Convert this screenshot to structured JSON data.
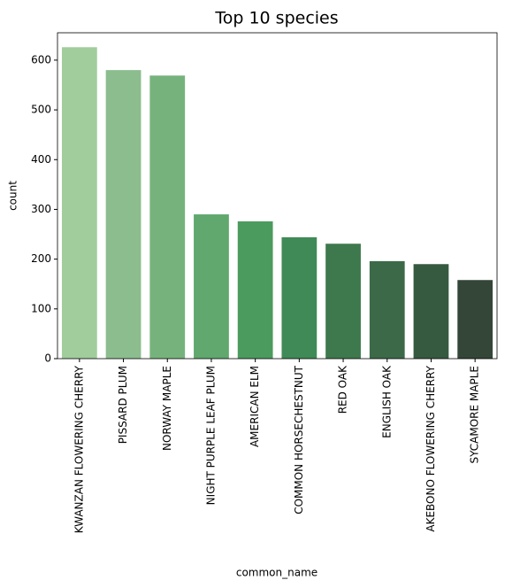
{
  "chart_data": {
    "type": "bar",
    "title": "Top 10 species",
    "x_label": "common_name",
    "y_label": "count",
    "categories": [
      "KWANZAN FLOWERING CHERRY",
      "PISSARD PLUM",
      "NORWAY MAPLE",
      "NIGHT PURPLE LEAF PLUM",
      "AMERICAN ELM",
      "COMMON HORSECHESTNUT",
      "RED OAK",
      "ENGLISH OAK",
      "AKEBONO FLOWERING CHERRY",
      "SYCAMORE MAPLE"
    ],
    "values": [
      626,
      580,
      569,
      290,
      276,
      244,
      231,
      196,
      190,
      158
    ],
    "colors": [
      "#a1cd9c",
      "#8bbd8f",
      "#76b37c",
      "#60a86e",
      "#4b9b5f",
      "#3f8a56",
      "#3e794d",
      "#3c6a48",
      "#365a40",
      "#344637"
    ],
    "ylim": [
      0,
      655
    ],
    "yticks": [
      0,
      100,
      200,
      300,
      400,
      500,
      600
    ]
  }
}
